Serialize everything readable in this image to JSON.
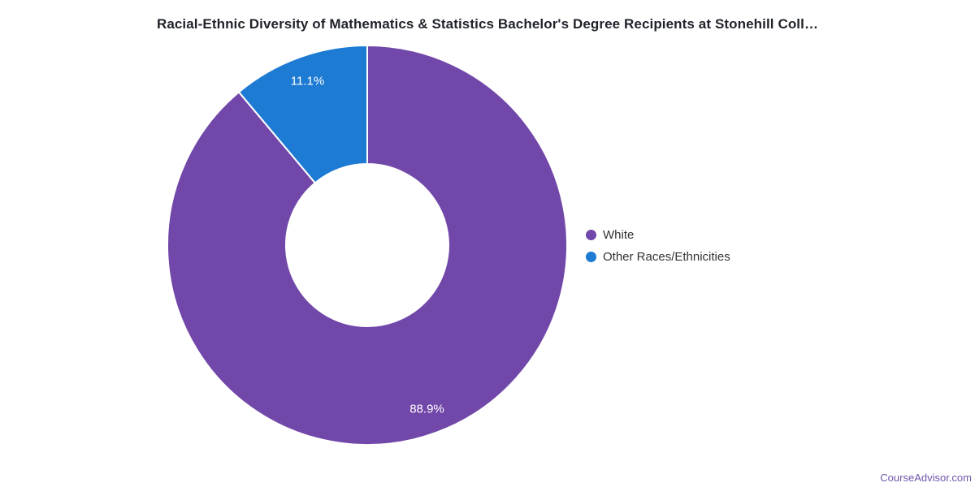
{
  "chart_data": {
    "type": "pie",
    "subtype": "donut",
    "title": "Racial-Ethnic Diversity of Mathematics & Statistics Bachelor's Degree Recipients at Stonehill Coll…",
    "categories": [
      "White",
      "Other Races/Ethnicities"
    ],
    "values": [
      88.9,
      11.1
    ],
    "unit": "percent",
    "slices": [
      {
        "label": "White",
        "value": 88.9,
        "display": "88.9%",
        "color": "#7147a9"
      },
      {
        "label": "Other Races/Ethnicities",
        "value": 11.1,
        "display": "11.1%",
        "color": "#1e7bd3"
      }
    ],
    "start_angle_deg": 0,
    "direction": "clockwise",
    "donut_hole_ratio": 0.41,
    "slice_border_color": "#ffffff",
    "data_label_color": "#ffffff",
    "legend_position": "right",
    "legend_text_color": "#333333",
    "title_color": "#1f2329"
  },
  "footer": {
    "credit": "CourseAdvisor.com",
    "color": "#7056a8"
  }
}
